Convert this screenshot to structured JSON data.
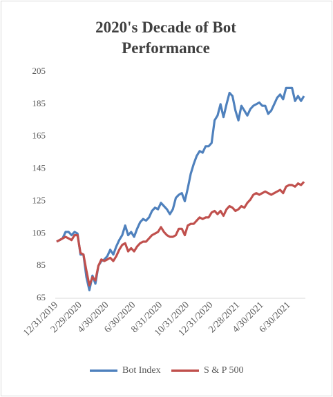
{
  "chart_data": {
    "type": "line",
    "title": "2020's Decade of Bot Performance",
    "categories": [
      "12/31/2019",
      null,
      null,
      null,
      null,
      null,
      null,
      null,
      "2/29/2020",
      null,
      null,
      null,
      null,
      null,
      null,
      null,
      null,
      "4/30/2020",
      null,
      null,
      null,
      null,
      null,
      null,
      null,
      null,
      "6/30/2020",
      null,
      null,
      null,
      null,
      null,
      null,
      null,
      null,
      "8/31/2020",
      null,
      null,
      null,
      null,
      null,
      null,
      null,
      null,
      "10/31/2020",
      null,
      null,
      null,
      null,
      null,
      null,
      null,
      "12/31/2020",
      null,
      null,
      null,
      null,
      null,
      null,
      null,
      null,
      "2/28/2021",
      null,
      null,
      null,
      null,
      null,
      null,
      null,
      "4/30/2021",
      null,
      null,
      null,
      null,
      null,
      null,
      null,
      null,
      "6/30/2021",
      null,
      null,
      null,
      null,
      null
    ],
    "series": [
      {
        "name": "Bot Index",
        "color": "#4f81bd",
        "values": [
          100,
          101,
          102,
          106,
          106,
          104,
          106,
          105,
          92,
          92,
          78,
          70,
          79,
          74,
          85,
          88,
          89,
          91,
          95,
          92,
          97,
          101,
          104,
          110,
          104,
          106,
          103,
          108,
          112,
          114,
          113,
          115,
          119,
          121,
          120,
          124,
          122,
          120,
          117,
          120,
          127,
          129,
          130,
          125,
          133,
          142,
          148,
          153,
          156,
          155,
          159,
          159,
          161,
          175,
          178,
          185,
          177,
          185,
          192,
          190,
          181,
          175,
          184,
          181,
          178,
          182,
          184,
          185,
          186,
          184,
          184,
          179,
          181,
          185,
          189,
          191,
          188,
          195,
          195,
          195,
          187,
          190,
          187,
          190
        ]
      },
      {
        "name": "S & P 500",
        "color": "#c0504d",
        "values": [
          100,
          101,
          102,
          103,
          102,
          101,
          104,
          104,
          93,
          92,
          82,
          73,
          78,
          76,
          85,
          89,
          88,
          89,
          90,
          88,
          91,
          95,
          98,
          99,
          94,
          96,
          94,
          97,
          99,
          100,
          100,
          102,
          104,
          105,
          106,
          109,
          106,
          104,
          103,
          103,
          104,
          108,
          108,
          104,
          110,
          111,
          111,
          113,
          115,
          114,
          115,
          115,
          118,
          119,
          117,
          119,
          116,
          120,
          122,
          121,
          119,
          120,
          122,
          121,
          124,
          126,
          129,
          130,
          129,
          130,
          131,
          130,
          129,
          130,
          131,
          132,
          130,
          134,
          135,
          135,
          134,
          136,
          135,
          137
        ]
      }
    ],
    "ylim": [
      65,
      205
    ],
    "yticks": [
      65,
      85,
      105,
      125,
      145,
      165,
      185,
      205
    ],
    "legend": "bottom"
  }
}
